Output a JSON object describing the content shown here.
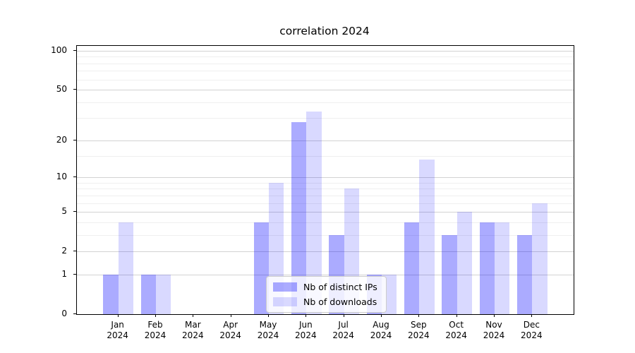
{
  "figure": {
    "background": "#ffffff"
  },
  "chart_data": {
    "type": "bar",
    "title": "correlation 2024",
    "categories": [
      "Jan 2024",
      "Feb 2024",
      "Mar 2024",
      "Apr 2024",
      "May 2024",
      "Jun 2024",
      "Jul 2024",
      "Aug 2024",
      "Sep 2024",
      "Oct 2024",
      "Nov 2024",
      "Dec 2024"
    ],
    "series": [
      {
        "name": "Nb of distinct IPs",
        "color": "rgba(0,0,255,0.33)",
        "values": [
          1,
          1,
          0,
          0,
          4,
          28,
          3,
          1,
          4,
          3,
          4,
          3
        ]
      },
      {
        "name": "Nb of downloads",
        "color": "rgba(0,0,255,0.15)",
        "values": [
          4,
          1,
          0,
          0,
          9,
          34,
          8,
          1,
          14,
          5,
          4,
          6
        ]
      }
    ],
    "xlabel": "",
    "ylabel": "",
    "yscale": "log1p",
    "ylim": [
      0,
      109
    ],
    "y_major_ticks": [
      0,
      1,
      2,
      5,
      10,
      20,
      50,
      100
    ],
    "y_minor_ticks": [
      3,
      4,
      6,
      7,
      8,
      9,
      15,
      30,
      40,
      60,
      70,
      80,
      90
    ],
    "grid": "horizontal",
    "legend": {
      "position": "lower center",
      "entries": [
        "Nb of distinct IPs",
        "Nb of downloads"
      ]
    }
  },
  "colors": {
    "grid_major": "#d2d2d2",
    "grid_minor": "#efefef",
    "axis": "#000000",
    "legend_border": "#cccccc",
    "bar_ips": "rgba(0,0,255,0.33)",
    "bar_downloads": "rgba(0,0,255,0.15)"
  }
}
